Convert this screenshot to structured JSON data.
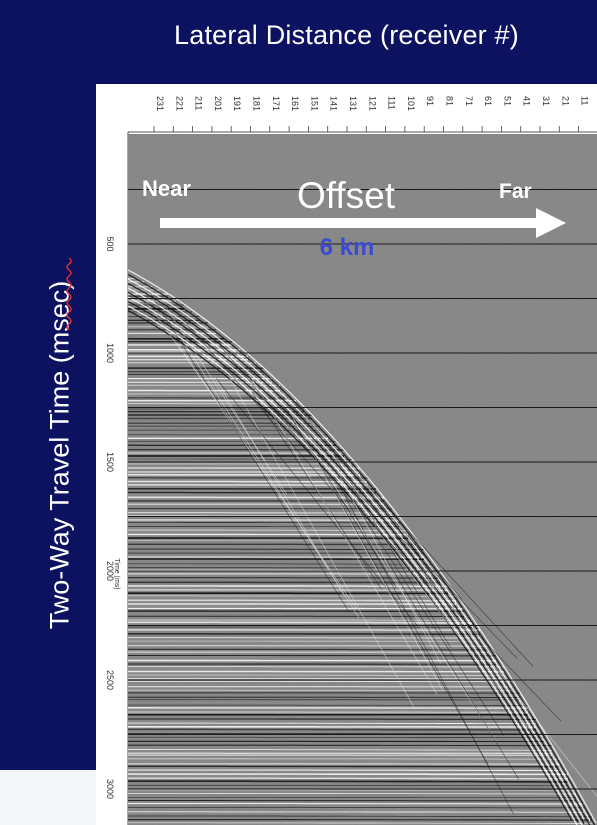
{
  "title": "Lateral Distance (receiver #)",
  "y_axis_label": "Two-Way Travel Time (msec)",
  "receiver_labels": [
    "231",
    "221",
    "211",
    "201",
    "191",
    "181",
    "171",
    "161",
    "151",
    "141",
    "131",
    "121",
    "111",
    "101",
    "91",
    "81",
    "71",
    "61",
    "51",
    "41",
    "31",
    "21",
    "11"
  ],
  "time_ticks": [
    {
      "label": "500",
      "value": 500
    },
    {
      "label": "1000",
      "value": 1000
    },
    {
      "label": "1500",
      "value": 1500
    },
    {
      "label": "2000",
      "value": 2000
    },
    {
      "label": "2500",
      "value": 2500
    },
    {
      "label": "3000",
      "value": 3000
    }
  ],
  "time_axis_title": "Time (ms)",
  "overlay": {
    "near": "Near",
    "offset": "Offset",
    "far": "Far",
    "distance": "6 km"
  },
  "colors": {
    "band": "#0c1160",
    "seismic_bg": "#838383",
    "overlay_blue": "#3c4bd0",
    "arrow": "#ffffff"
  }
}
